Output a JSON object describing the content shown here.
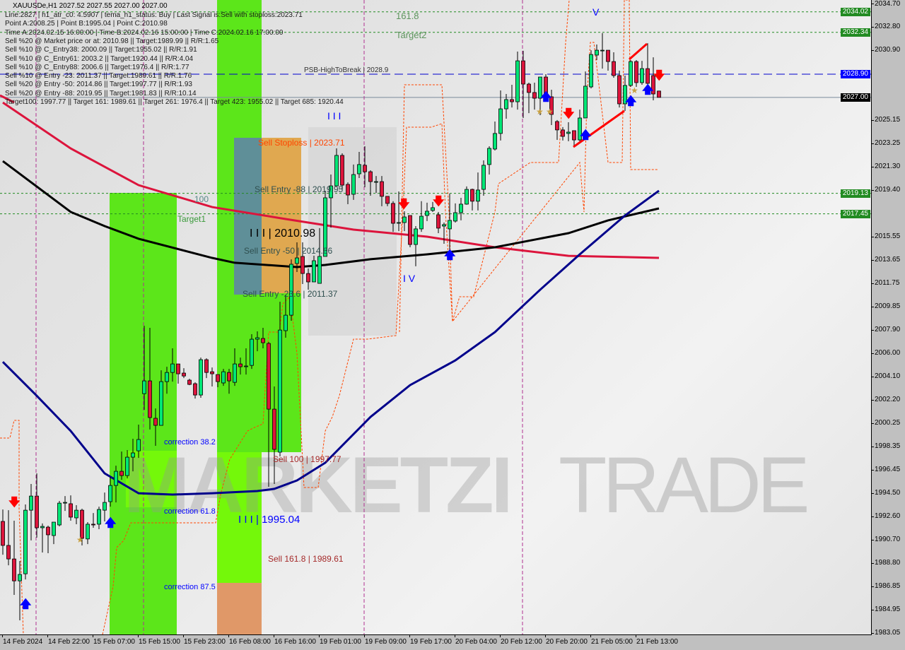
{
  "header": {
    "title": "XAUUSDe,H1  2027.52 2027.55 2027.00 2027.00",
    "info_lines": [
      "Line:2827 | h1_atr_c0: 4.5907 | tema_h1_status: Buy | Last Signal is:Sell with stoploss:2023.71",
      "Point A:2008.25 | Point B:1995.04 | Point C:2010.98",
      "Time A:2024.02.15 16:00:00 | Time B:2024.02.16 15:00:00 | Time C:2024.02.16 17:00:00",
      "Sell %20 @ Market price or at: 2010.98 || Target:1989.99 || R/R:1.65",
      "Sell %10 @ C_Entry38: 2000.09 || Target:1955.02 || R/R:1.91",
      "Sell %10 @ C_Entry61: 2003.2 || Target:1920.44 || R/R:4.04",
      "Sell %10 @ C_Entry88: 2006.6 || Target:1976.4 || R/R:1.77",
      "Sell %10 @ Entry -23: 2011.37 || Target:1989.61 || R/R:1.76",
      "Sell %20 @ Entry -50: 2014.86 || Target:1997.77 || R/R:1.93",
      "Sell %20 @ Entry -88: 2019.95 || Target:1981.83 || R/R:10.14",
      "Target100: 1997.77 || Target 161: 1989.61 || Target 261: 1976.4 || Target 423: 1955.02 || Target 685: 1920.44"
    ],
    "psb_label": "PSB-HighToBreak | 2028.9",
    "faded_161": "161.8",
    "faded_target2": "Target2"
  },
  "annotations": {
    "sell_stoploss": "Sell Stoploss | 2023.71",
    "sell_entry_88": "Sell Entry -88 | 2019.95",
    "point_c": "I I I | 2010.98",
    "sell_entry_50": "Sell Entry -50 | 2014.86",
    "sell_entry_236": "Sell Entry -23.6 | 2011.37",
    "sell_100": "Sell 100 | 1997.77",
    "sell_1618": "Sell 161.8 | 1989.61",
    "correction_382": "correction 38.2",
    "correction_618": "correction 61.8",
    "correction_875": "correction 87.5",
    "point_b": "I I I | 1995.04",
    "wave_3": "I I I",
    "wave_4": "I V",
    "wave_5": "V",
    "target1": "Target1",
    "level_100": "100"
  },
  "watermark": {
    "text_bold": "MARKETZI",
    "text_light": "TRADE"
  },
  "colors": {
    "bull": "#00e676",
    "bear": "#dc143c",
    "ma_red": "#dc143c",
    "ma_black": "#000000",
    "ma_blue": "#00008b",
    "level_green": "#228b22",
    "level_blue": "#0000ff",
    "current": "#000000",
    "zone_green": "#5ce61a",
    "zone_orange": "#e0a850",
    "zone_teal": "#5f8f98",
    "zone_salmon": "#e09868"
  },
  "chart_data": {
    "type": "candlestick",
    "symbol": "XAUUSDe",
    "timeframe": "H1",
    "ylim": [
      1983.05,
      2034.7
    ],
    "y_ticks": [
      "2034.70",
      "2032.80",
      "2030.90",
      "2025.15",
      "2023.25",
      "2021.30",
      "2019.40",
      "2015.55",
      "2013.65",
      "2011.75",
      "2009.85",
      "2007.90",
      "2006.00",
      "2004.10",
      "2002.20",
      "2000.25",
      "1998.35",
      "1996.45",
      "1994.50",
      "1992.60",
      "1990.70",
      "1988.80",
      "1986.85",
      "1984.95",
      "1983.05"
    ],
    "x_ticks": [
      "14 Feb 2024",
      "14 Feb 22:00",
      "15 Feb 07:00",
      "15 Feb 15:00",
      "15 Feb 23:00",
      "16 Feb 08:00",
      "16 Feb 16:00",
      "19 Feb 01:00",
      "19 Feb 09:00",
      "19 Feb 17:00",
      "20 Feb 04:00",
      "20 Feb 12:00",
      "20 Feb 20:00",
      "21 Feb 05:00",
      "21 Feb 13:00"
    ],
    "levels": [
      {
        "price": 2034.02,
        "label": "2034.02",
        "style": "green-dotted"
      },
      {
        "price": 2032.34,
        "label": "2032.34",
        "style": "green-dotted"
      },
      {
        "price": 2028.9,
        "label": "2028.90",
        "style": "blue-dashed"
      },
      {
        "price": 2027.0,
        "label": "2027.00",
        "style": "current"
      },
      {
        "price": 2019.13,
        "label": "2019.13",
        "style": "green-dotted"
      },
      {
        "price": 2017.45,
        "label": "2017.45",
        "style": "green-dotted"
      }
    ],
    "candles_ohlc": [
      [
        1992.21,
        1993.19,
        1989.48,
        1990.24
      ],
      [
        1990.24,
        1993.13,
        1988.61,
        1989.13
      ],
      [
        1989.13,
        1992.27,
        1986.18,
        1987.33
      ],
      [
        1987.33,
        1988.96,
        1984.09,
        1987.86
      ],
      [
        1987.91,
        1993.6,
        1987.45,
        1993.13
      ],
      [
        1993.13,
        1995.28,
        1990.65,
        1994.29
      ],
      [
        1994.29,
        1996.15,
        1990.88,
        1991.69
      ],
      [
        1991.69,
        1992.04,
        1989.66,
        1991.8
      ],
      [
        1991.74,
        1991.86,
        1989.6,
        1991.11
      ],
      [
        1991.05,
        1992.15,
        1990.35,
        1992.15
      ],
      [
        1991.92,
        1993.89,
        1991.8,
        1993.71
      ],
      [
        1993.71,
        1994.29,
        1993.07,
        1993.77
      ],
      [
        1993.66,
        1994.35,
        1992.27,
        1992.56
      ],
      [
        1992.5,
        1993.54,
        1991.98,
        1993.13
      ],
      [
        1993.13,
        1993.25,
        1990.24,
        1990.82
      ],
      [
        1990.77,
        1992.15,
        1990.35,
        1991.98
      ],
      [
        1991.98,
        1992.9,
        1991.69,
        1991.92
      ],
      [
        1991.98,
        1993.42,
        1991.57,
        1993.19
      ],
      [
        1993.13,
        1994.58,
        1992.21,
        1993.77
      ],
      [
        1993.83,
        1995.86,
        1993.42,
        1995.16
      ],
      [
        1995.16,
        1996.78,
        1993.77,
        1996.32
      ],
      [
        1996.32,
        1997.94,
        1995.62,
        1995.97
      ],
      [
        1995.97,
        1998.06,
        1995.74,
        1997.48
      ],
      [
        1997.48,
        1998.99,
        1996.32,
        1997.83
      ],
      [
        1998.0,
        2000.15,
        1997.42,
        1998.93
      ],
      [
        2002.69,
        2008.26,
        2001.36,
        2003.74
      ],
      [
        2003.74,
        2008.09,
        1999.75,
        2000.73
      ],
      [
        2000.67,
        2001.48,
        1998.41,
        2000.09
      ],
      [
        2000.09,
        2004.61,
        2000.09,
        2003.68
      ],
      [
        2003.68,
        2004.9,
        2002.69,
        2004.43
      ],
      [
        2004.43,
        2006.41,
        2003.68,
        2005.13
      ],
      [
        2005.13,
        2005.13,
        2003.51,
        2004.32
      ],
      [
        2004.38,
        2004.78,
        2003.97,
        2004.14
      ],
      [
        2003.8,
        2003.91,
        2003.39,
        2003.45
      ],
      [
        2003.51,
        2003.62,
        2002.29,
        2002.58
      ],
      [
        2002.58,
        2005.65,
        2002.35,
        2005.48
      ],
      [
        2005.48,
        2005.59,
        2003.97,
        2004.43
      ],
      [
        2004.49,
        2004.84,
        2003.28,
        2004.32
      ],
      [
        2004.26,
        2004.26,
        2003.22,
        2003.68
      ],
      [
        2003.57,
        2004.72,
        2003.33,
        2004.49
      ],
      [
        2004.43,
        2004.72,
        2002.69,
        2003.74
      ],
      [
        2003.62,
        2006.41,
        2003.33,
        2005.13
      ],
      [
        2005.13,
        2005.65,
        2004.26,
        2004.9
      ],
      [
        2004.96,
        2006.41,
        2004.26,
        2004.96
      ],
      [
        2005.01,
        2007.57,
        2004.72,
        2007.16
      ],
      [
        2007.16,
        2007.8,
        2006.17,
        2007.28
      ],
      [
        2007.22,
        2008.09,
        2006.41,
        2006.87
      ],
      [
        2006.81,
        2006.93,
        1995.05,
        2001.42
      ],
      [
        2001.42,
        2003.28,
        1995.28,
        1998.12
      ],
      [
        1997.89,
        2010.23,
        1997.54,
        2007.91
      ],
      [
        2007.86,
        2010.81,
        2007.28,
        2009.13
      ],
      [
        2009.13,
        2013.71,
        2008.67,
        2013.31
      ],
      [
        2013.37,
        2015.11,
        2012.67,
        2013.83
      ],
      [
        2013.95,
        2015.11,
        2011.69,
        2012.55
      ],
      [
        2012.55,
        2012.96,
        2011.22,
        2011.86
      ],
      [
        2011.86,
        2014.01,
        2011.86,
        2013.6
      ],
      [
        2011.74,
        2016.27,
        2011.74,
        2013.95
      ],
      [
        2013.95,
        2019.34,
        2013.95,
        2018.76
      ],
      [
        2018.76,
        2020.67,
        2016.32,
        2019.74
      ],
      [
        2019.74,
        2022.82,
        2019.74,
        2022.24
      ],
      [
        2022.24,
        2022.41,
        2019.34,
        2019.8
      ],
      [
        2019.86,
        2020.03,
        2018.24,
        2018.99
      ],
      [
        2019.05,
        2021.49,
        2018.59,
        2020.67
      ],
      [
        2020.73,
        2022.53,
        2020.38,
        2021.49
      ],
      [
        2021.43,
        2022.99,
        2019.63,
        2020.9
      ],
      [
        2020.9,
        2021.02,
        2018.93,
        2020.09
      ],
      [
        2020.09,
        2020.55,
        2019.16,
        2020.09
      ],
      [
        2020.09,
        2020.55,
        2018.07,
        2018.88
      ],
      [
        2018.88,
        2018.88,
        2018.07,
        2018.3
      ],
      [
        2018.3,
        2018.48,
        2015.97,
        2016.67
      ],
      [
        2016.73,
        2019.28,
        2016.03,
        2016.73
      ],
      [
        2016.73,
        2017.66,
        2016.03,
        2017.19
      ],
      [
        2017.31,
        2017.31,
        2014.7,
        2014.93
      ],
      [
        2014.93,
        2016.44,
        2013.14,
        2016.21
      ],
      [
        2016.21,
        2018.48,
        2015.97,
        2017.25
      ],
      [
        2017.31,
        2018.36,
        2016.85,
        2017.66
      ],
      [
        2017.72,
        2018.42,
        2017.6,
        2017.95
      ],
      [
        2017.37,
        2017.6,
        2015.86,
        2016.27
      ],
      [
        2016.44,
        2016.73,
        2014.99,
        2016.56
      ],
      [
        2016.21,
        2019.11,
        2013.83,
        2016.91
      ],
      [
        2016.85,
        2018.3,
        2016.73,
        2017.54
      ],
      [
        2017.54,
        2018.76,
        2016.91,
        2018.24
      ],
      [
        2018.24,
        2019.69,
        2018.19,
        2019.45
      ],
      [
        2019.45,
        2019.51,
        2017.72,
        2018.48
      ],
      [
        2018.48,
        2020.84,
        2017.72,
        2019.4
      ],
      [
        2019.45,
        2021.83,
        2018.93,
        2021.43
      ],
      [
        2021.49,
        2022.99,
        2020.67,
        2022.82
      ],
      [
        2022.76,
        2025.02,
        2022.64,
        2024.04
      ],
      [
        2024.04,
        2027.57,
        2023.46,
        2026.06
      ],
      [
        2026.06,
        2027.28,
        2025.25,
        2026.82
      ],
      [
        2026.82,
        2028.03,
        2026.17,
        2026.64
      ],
      [
        2026.64,
        2030.76,
        2026.0,
        2030.0
      ],
      [
        2030.0,
        2030.82,
        2025.31,
        2028.09
      ],
      [
        2028.09,
        2028.21,
        2025.71,
        2027.4
      ],
      [
        2027.4,
        2028.21,
        2026.0,
        2026.93
      ],
      [
        2026.93,
        2028.67,
        2025.54,
        2028.67
      ],
      [
        2028.67,
        2028.9,
        2026.76,
        2027.05
      ],
      [
        2027.05,
        2027.63,
        2024.73,
        2025.6
      ],
      [
        2025.02,
        2025.14,
        2023.51,
        2024.33
      ],
      [
        2024.33,
        2024.56,
        2023.46,
        2023.8
      ],
      [
        2024.04,
        2024.96,
        2023.4,
        2024.15
      ],
      [
        2024.27,
        2024.27,
        2022.93,
        2023.51
      ],
      [
        2023.51,
        2026.0,
        2023.4,
        2025.31
      ],
      [
        2025.31,
        2029.13,
        2025.31,
        2027.92
      ],
      [
        2027.86,
        2030.87,
        2027.74,
        2030.52
      ],
      [
        2030.47,
        2031.34,
        2030.06,
        2030.87
      ],
      [
        2030.87,
        2032.27,
        2029.36,
        2030.87
      ],
      [
        2030.87,
        2030.87,
        2029.19,
        2029.94
      ],
      [
        2029.94,
        2030.7,
        2028.61,
        2028.79
      ],
      [
        2028.79,
        2029.19,
        2026.17,
        2026.47
      ],
      [
        2026.47,
        2028.79,
        2025.89,
        2027.98
      ],
      [
        2027.98,
        2030.06,
        2027.86,
        2029.94
      ],
      [
        2029.94,
        2030.06,
        2027.86,
        2028.21
      ],
      [
        2028.21,
        2030.0,
        2028.03,
        2029.36
      ],
      [
        2029.36,
        2031.45,
        2027.57,
        2028.15
      ],
      [
        2028.79,
        2030.29,
        2026.76,
        2027.28
      ],
      [
        2027.52,
        2027.55,
        2027.0,
        2027.0
      ]
    ],
    "moving_averages": [
      {
        "color": "#dc143c",
        "points": [
          [
            0,
            2026.58
          ],
          [
            12,
            2022.81
          ],
          [
            24,
            2019.8
          ],
          [
            37,
            2018.0
          ],
          [
            50,
            2017.02
          ],
          [
            62,
            2016.15
          ],
          [
            75,
            2015.57
          ],
          [
            87,
            2014.7
          ],
          [
            100,
            2014.0
          ],
          [
            116,
            2013.83
          ]
        ]
      },
      {
        "color": "#000000",
        "points": [
          [
            0,
            2021.77
          ],
          [
            12,
            2017.6
          ],
          [
            18,
            2016.44
          ],
          [
            24,
            2015.4
          ],
          [
            37,
            2013.83
          ],
          [
            41,
            2013.43
          ],
          [
            52,
            2013.08
          ],
          [
            57,
            2013.25
          ],
          [
            65,
            2013.72
          ],
          [
            75,
            2014.12
          ],
          [
            87,
            2014.7
          ],
          [
            100,
            2015.86
          ],
          [
            107,
            2016.91
          ],
          [
            116,
            2017.89
          ]
        ]
      },
      {
        "color": "#00008b",
        "points": [
          [
            0,
            2005.3
          ],
          [
            6,
            2002.52
          ],
          [
            12,
            1999.63
          ],
          [
            18,
            1996.15
          ],
          [
            24,
            1994.52
          ],
          [
            30,
            1994.41
          ],
          [
            37,
            1994.52
          ],
          [
            45,
            1994.7
          ],
          [
            48,
            1994.88
          ],
          [
            52,
            1995.57
          ],
          [
            57,
            1997.02
          ],
          [
            65,
            2000.78
          ],
          [
            72,
            2003.39
          ],
          [
            80,
            2005.42
          ],
          [
            87,
            2007.74
          ],
          [
            95,
            2011.22
          ],
          [
            102,
            2014.12
          ],
          [
            110,
            2017.31
          ],
          [
            116,
            2019.34
          ]
        ]
      }
    ]
  }
}
